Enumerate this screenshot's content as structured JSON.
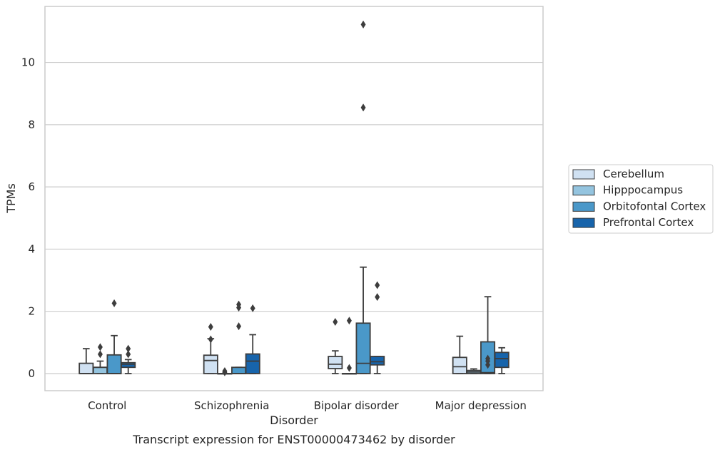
{
  "chart_data": {
    "type": "box",
    "title": "",
    "caption": "Transcript expression for ENST00000473462 by disorder",
    "xlabel": "Disorder",
    "ylabel": "TPMs",
    "ylim": [
      -0.55,
      11.8
    ],
    "yticks": [
      0,
      2,
      4,
      6,
      8,
      10
    ],
    "grid": "horizontal",
    "legend_position": "right",
    "categories": [
      "Control",
      "Schizophrenia",
      "Bipolar disorder",
      "Major depression"
    ],
    "series": [
      {
        "name": "Cerebellum",
        "color": "#d0e1f2",
        "boxes": [
          {
            "whislo": 0.0,
            "q1": 0.0,
            "med": 0.0,
            "q3": 0.33,
            "whishi": 0.8,
            "fliers": []
          },
          {
            "whislo": 0.0,
            "q1": 0.0,
            "med": 0.42,
            "q3": 0.59,
            "whishi": 1.12,
            "fliers": [
              1.5,
              1.1
            ]
          },
          {
            "whislo": 0.0,
            "q1": 0.16,
            "med": 0.3,
            "q3": 0.55,
            "whishi": 0.73,
            "fliers": [
              1.66
            ]
          },
          {
            "whislo": 0.0,
            "q1": 0.0,
            "med": 0.22,
            "q3": 0.52,
            "whishi": 1.2,
            "fliers": []
          }
        ]
      },
      {
        "name": "Hipppocampus",
        "color": "#94c4df",
        "boxes": [
          {
            "whislo": 0.0,
            "q1": 0.0,
            "med": 0.2,
            "q3": 0.2,
            "whishi": 0.4,
            "fliers": [
              0.85,
              0.62
            ]
          },
          {
            "whislo": 0.0,
            "q1": 0.0,
            "med": 0.0,
            "q3": 0.0,
            "whishi": 0.0,
            "fliers": [
              0.08,
              0.04
            ]
          },
          {
            "whislo": 0.0,
            "q1": 0.0,
            "med": 0.0,
            "q3": 0.0,
            "whishi": 0.0,
            "fliers": [
              1.7,
              0.18
            ]
          },
          {
            "whislo": 0.0,
            "q1": 0.0,
            "med": 0.05,
            "q3": 0.1,
            "whishi": 0.15,
            "fliers": []
          }
        ]
      },
      {
        "name": "Orbitofontal Cortex",
        "color": "#4a98c9",
        "boxes": [
          {
            "whislo": 0.0,
            "q1": 0.0,
            "med": 0.0,
            "q3": 0.6,
            "whishi": 1.22,
            "fliers": [
              2.26
            ]
          },
          {
            "whislo": 0.0,
            "q1": 0.0,
            "med": 0.0,
            "q3": 0.2,
            "whishi": 0.2,
            "fliers": [
              2.22,
              2.12,
              1.52
            ]
          },
          {
            "whislo": 0.0,
            "q1": 0.0,
            "med": 0.33,
            "q3": 1.62,
            "whishi": 3.42,
            "fliers": [
              11.22,
              8.55
            ]
          },
          {
            "whislo": 0.0,
            "q1": 0.0,
            "med": 0.03,
            "q3": 1.02,
            "whishi": 2.47,
            "fliers": [
              0.48,
              0.4,
              0.28
            ]
          }
        ]
      },
      {
        "name": "Prefrontal Cortex",
        "color": "#1764ab",
        "boxes": [
          {
            "whislo": 0.0,
            "q1": 0.2,
            "med": 0.3,
            "q3": 0.35,
            "whishi": 0.45,
            "fliers": [
              0.8,
              0.62
            ]
          },
          {
            "whislo": 0.0,
            "q1": 0.0,
            "med": 0.4,
            "q3": 0.63,
            "whishi": 1.25,
            "fliers": [
              2.1
            ]
          },
          {
            "whislo": 0.0,
            "q1": 0.28,
            "med": 0.38,
            "q3": 0.55,
            "whishi": 0.55,
            "fliers": [
              2.84,
              2.46
            ]
          },
          {
            "whislo": 0.0,
            "q1": 0.2,
            "med": 0.48,
            "q3": 0.68,
            "whishi": 0.83,
            "fliers": []
          }
        ]
      }
    ]
  }
}
